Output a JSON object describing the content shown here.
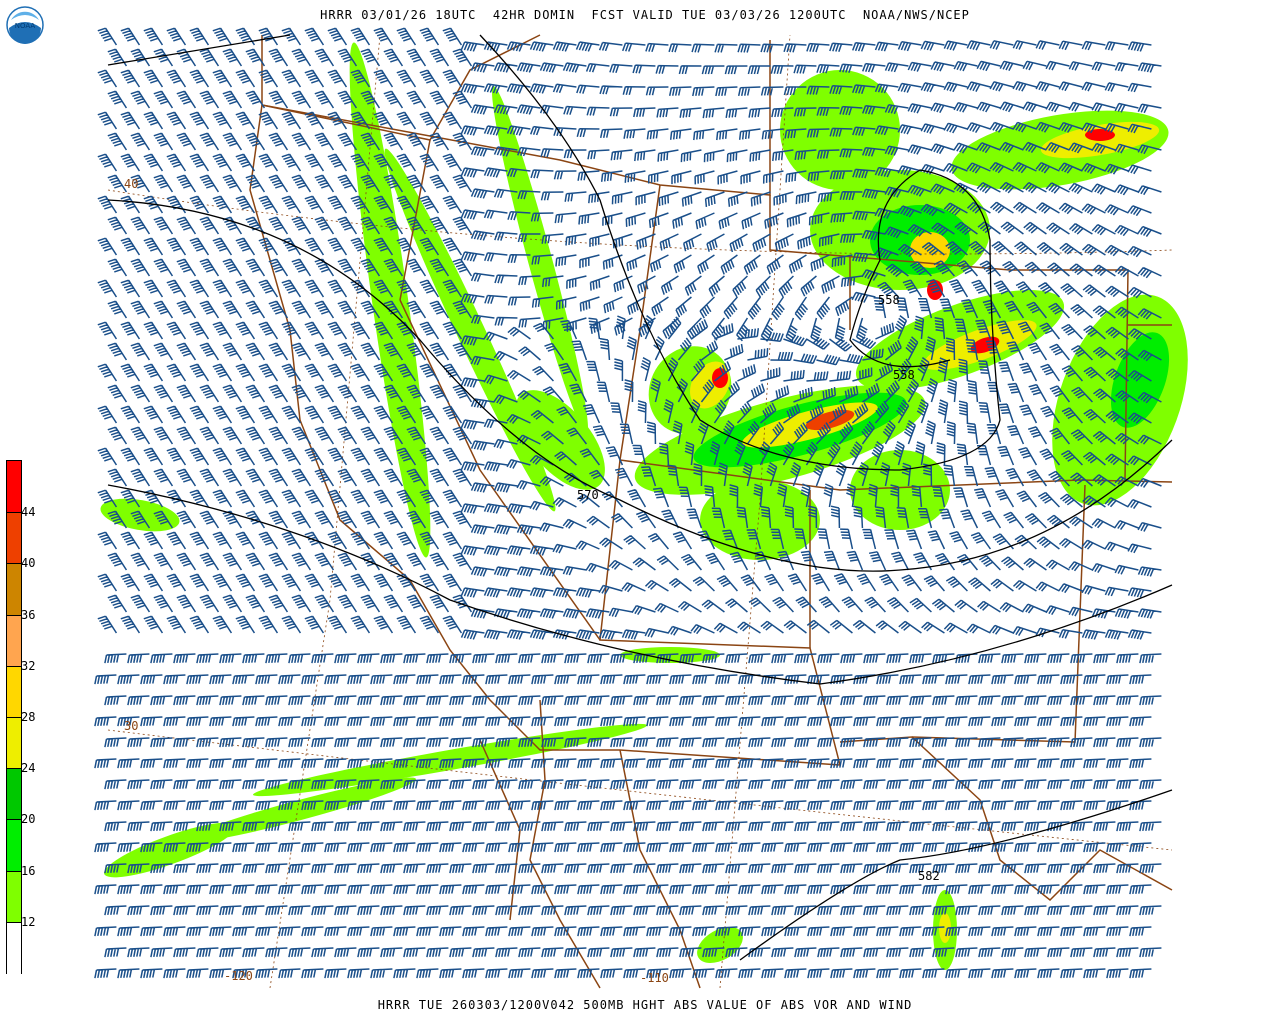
{
  "header": {
    "title": "HRRR 03/01/26 18UTC  42HR DOMIN  FCST VALID TUE 03/03/26 1200UTC  NOAA/NWS/NCEP"
  },
  "footer": {
    "caption": "HRRR TUE 260303/1200V042 500MB HGHT ABS VALUE OF ABS VOR AND WIND"
  },
  "logo": {
    "text": "NOAA",
    "icon": "noaa-logo"
  },
  "colorbar": {
    "levels": [
      "12",
      "16",
      "20",
      "24",
      "28",
      "32",
      "36",
      "40",
      "44"
    ],
    "colors": [
      "#ffffff",
      "#7fff00",
      "#00ee00",
      "#00c800",
      "#eeee00",
      "#ffd700",
      "#ffa54f",
      "#cd8500",
      "#ee4000",
      "#ff0000"
    ]
  },
  "map": {
    "contour_labels": [
      "558",
      "558",
      "570",
      "582"
    ],
    "lat_labels": [
      "40",
      "30"
    ],
    "lon_labels": [
      "-120",
      "-110"
    ],
    "colors": {
      "barbs": "#1a4f8a",
      "borders": "#8b4513",
      "contours": "#000000"
    }
  }
}
